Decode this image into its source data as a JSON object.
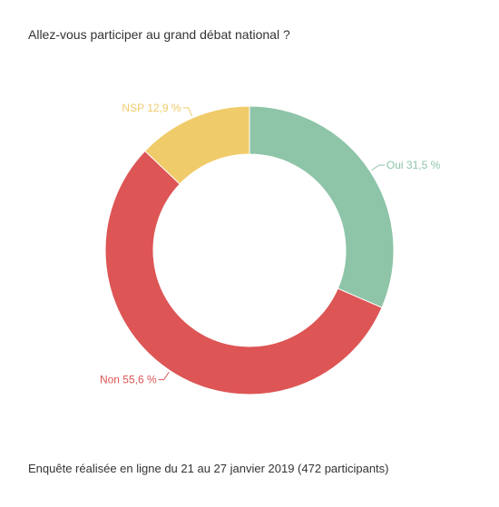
{
  "chart_data": {
    "type": "pie",
    "subtype": "donut",
    "title": "Allez-vous participer au grand débat national ?",
    "categories": [
      "Oui",
      "Non",
      "NSP"
    ],
    "values": [
      31.5,
      55.6,
      12.9
    ],
    "value_labels": [
      "31,5 %",
      "55,6 %",
      "12,9 %"
    ],
    "colors": [
      "#8ec4a8",
      "#dd5555",
      "#f0cb6a"
    ],
    "legend": "none"
  },
  "footer": "Enquête réalisée en ligne du 21 au 27 janvier 2019  (472 participants)"
}
